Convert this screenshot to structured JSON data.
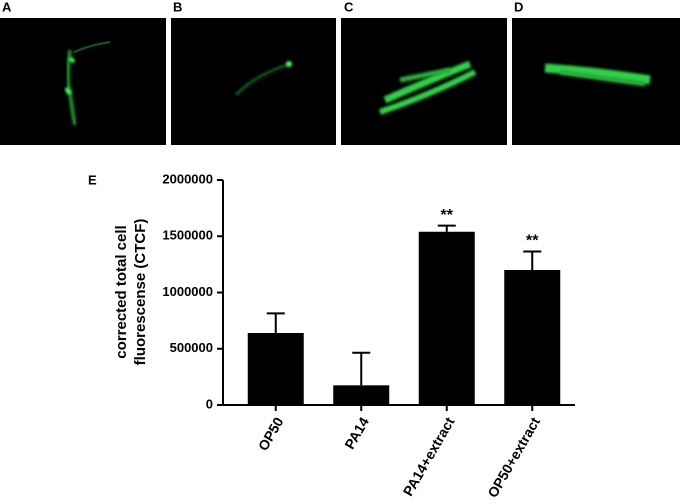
{
  "panels": [
    "A",
    "B",
    "C",
    "D"
  ],
  "chart_data": {
    "type": "bar",
    "panel_label": "E",
    "y_label": [
      "corrected total cell",
      "fluorescense (CTCF)"
    ],
    "categories": [
      "OP50",
      "PA14",
      "PA14+extract",
      "OP50+extract"
    ],
    "values": [
      640000,
      175000,
      1540000,
      1200000
    ],
    "errors": [
      175000,
      290000,
      55000,
      165000
    ],
    "value_annotations": [
      null,
      null,
      "**",
      "**"
    ],
    "color": "#000000",
    "ylim": [
      0,
      2000000
    ],
    "yticks": [
      0,
      500000,
      1000000,
      1500000,
      2000000
    ],
    "grid": false
  }
}
